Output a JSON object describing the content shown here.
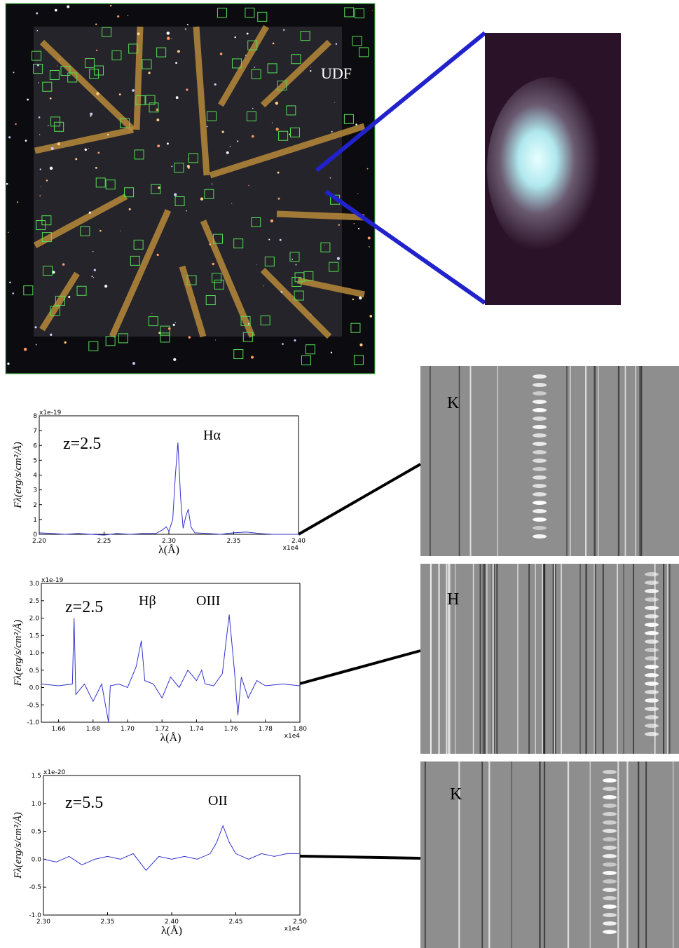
{
  "image_labels": {
    "field": "UDF",
    "panels": [
      "K",
      "H",
      "K"
    ]
  },
  "chart_data": [
    {
      "type": "line",
      "xlabel": "λ(Å)",
      "ylabel": "Fλ(erg/s/cm²/Å)",
      "x_offset": "x1e4",
      "y_offset": "x1e-19",
      "annotations": [
        "z=2.5",
        "Hα"
      ],
      "color": "#3333cc",
      "x": [
        2.2,
        2.21,
        2.22,
        2.23,
        2.24,
        2.25,
        2.26,
        2.27,
        2.28,
        2.29,
        2.295,
        2.298,
        2.3,
        2.303,
        2.305,
        2.307,
        2.309,
        2.311,
        2.313,
        2.315,
        2.317,
        2.32,
        2.33,
        2.34,
        2.35,
        2.36,
        2.37,
        2.38,
        2.39,
        2.4
      ],
      "values": [
        0.1,
        0.05,
        0,
        0.05,
        0,
        -0.05,
        0.05,
        0,
        0.05,
        0.05,
        0.3,
        0.5,
        0.2,
        1.0,
        4.0,
        6.2,
        2.5,
        0.4,
        1.2,
        1.7,
        0.5,
        0.1,
        0.05,
        0,
        0.1,
        0.15,
        0.05,
        0,
        0,
        0
      ],
      "xlim": [
        2.2,
        2.4
      ],
      "xticks": [
        {
          "value": 2.2,
          "label": "2.20"
        },
        2.25,
        {
          "value": 2.3,
          "label": "2.30"
        },
        2.35,
        {
          "value": 2.4,
          "label": "2.40"
        }
      ],
      "ylim": [
        0,
        8
      ],
      "yticks": [
        0,
        1,
        2,
        3,
        4,
        5,
        6,
        7,
        8
      ]
    },
    {
      "type": "line",
      "xlabel": "λ(Å)",
      "ylabel": "Fλ(erg/s/cm²/Å)",
      "x_offset": "x1e4",
      "y_offset": "x1e-19",
      "annotations": [
        "z=2.5",
        "Hβ",
        "OIII"
      ],
      "color": "#3333cc",
      "x": [
        1.65,
        1.66,
        1.668,
        1.669,
        1.67,
        1.675,
        1.68,
        1.685,
        1.689,
        1.69,
        1.695,
        1.7,
        1.705,
        1.708,
        1.71,
        1.715,
        1.72,
        1.725,
        1.73,
        1.735,
        1.74,
        1.743,
        1.745,
        1.75,
        1.755,
        1.759,
        1.762,
        1.764,
        1.766,
        1.77,
        1.775,
        1.78,
        1.79,
        1.8
      ],
      "values": [
        0.1,
        0.05,
        0.1,
        2.0,
        -0.2,
        0.1,
        -0.4,
        0.1,
        -1.0,
        0.05,
        0.1,
        0,
        0.6,
        1.35,
        0.2,
        0.1,
        -0.3,
        0.3,
        0,
        0.5,
        0.2,
        0.5,
        0.1,
        0.05,
        0.4,
        2.1,
        0.5,
        -0.8,
        0.3,
        -0.3,
        0.2,
        0.05,
        0.1,
        0.05
      ],
      "xlim": [
        1.65,
        1.8
      ],
      "xticks": [
        1.66,
        1.68,
        {
          "value": 1.7,
          "label": "1.70"
        },
        1.72,
        1.74,
        1.76,
        1.78,
        {
          "value": 1.8,
          "label": "1.80"
        }
      ],
      "ylim": [
        -1,
        3
      ],
      "yticks": [
        {
          "value": -1,
          "label": "-1.0"
        },
        -0.5,
        {
          "value": 0,
          "label": "0.0"
        },
        0.5,
        {
          "value": 1,
          "label": "1.0"
        },
        1.5,
        {
          "value": 2,
          "label": "2.0"
        },
        2.5,
        {
          "value": 3,
          "label": "3.0"
        }
      ]
    },
    {
      "type": "line",
      "xlabel": "λ(Å)",
      "ylabel": "Fλ(erg/s/cm²/Å)",
      "x_offset": "x1e4",
      "y_offset": "x1e-20",
      "annotations": [
        "z=5.5",
        "OII"
      ],
      "color": "#3333cc",
      "x": [
        2.3,
        2.31,
        2.32,
        2.33,
        2.34,
        2.35,
        2.36,
        2.37,
        2.38,
        2.39,
        2.4,
        2.41,
        2.42,
        2.43,
        2.435,
        2.44,
        2.445,
        2.45,
        2.46,
        2.47,
        2.48,
        2.49,
        2.5
      ],
      "values": [
        0,
        -0.05,
        0.05,
        -0.1,
        0,
        0.05,
        0,
        0.1,
        -0.2,
        0.05,
        0,
        0.05,
        0,
        0.1,
        0.3,
        0.6,
        0.3,
        0.1,
        0,
        0.1,
        0.05,
        0.1,
        0.1
      ],
      "xlim": [
        2.3,
        2.5
      ],
      "xticks": [
        {
          "value": 2.3,
          "label": "2.30"
        },
        2.35,
        {
          "value": 2.4,
          "label": "2.40"
        },
        2.45,
        {
          "value": 2.5,
          "label": "2.50"
        }
      ],
      "ylim": [
        -1,
        1.5
      ],
      "yticks": [
        {
          "value": -1,
          "label": "-1.0"
        },
        -0.5,
        {
          "value": 0,
          "label": "0.0"
        },
        0.5,
        {
          "value": 1,
          "label": "1.0"
        },
        1.5
      ]
    }
  ]
}
